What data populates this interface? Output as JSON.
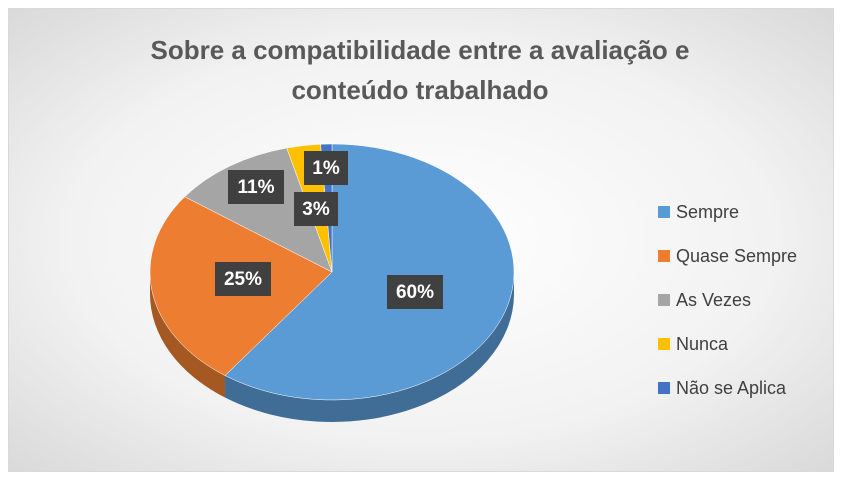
{
  "chart_data": {
    "type": "pie",
    "title": "Sobre a compatibilidade entre a avaliação e conteúdo trabalhado",
    "categories": [
      "Sempre",
      "Quase Sempre",
      "As Vezes",
      "Nunca",
      "Não se Aplica"
    ],
    "values": [
      60,
      25,
      11,
      3,
      1
    ],
    "value_labels": [
      "60%",
      "25%",
      "11%",
      "3%",
      "1%"
    ],
    "colors": [
      "#5b9bd5",
      "#ed7d31",
      "#a5a5a5",
      "#ffc000",
      "#4472c4"
    ],
    "legend": "right"
  }
}
